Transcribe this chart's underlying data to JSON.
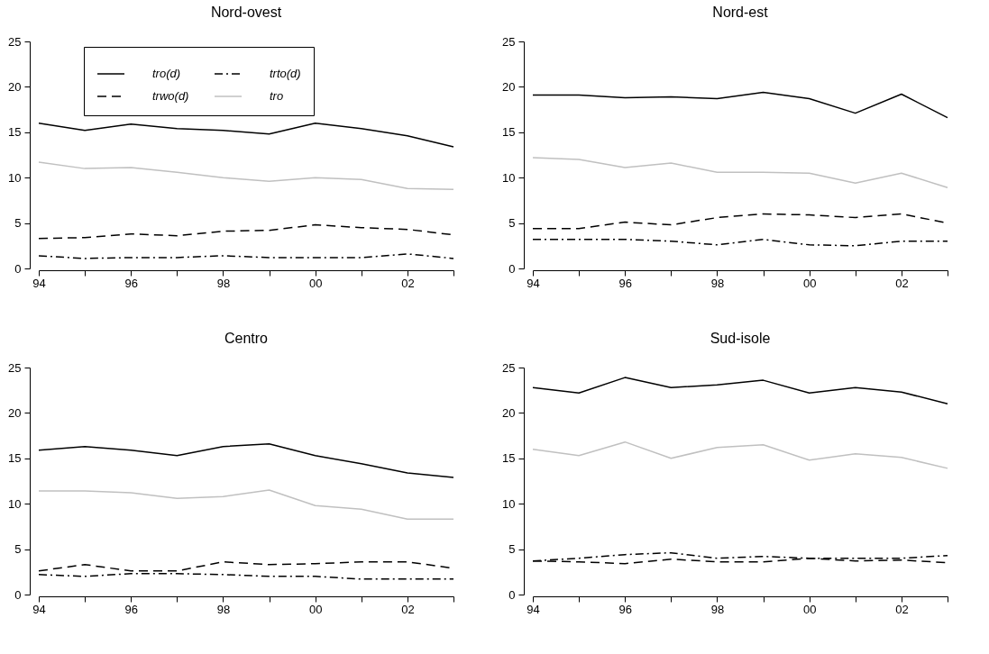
{
  "chart_data": [
    {
      "type": "line",
      "title": "Nord-ovest",
      "x": [
        1994,
        1995,
        1996,
        1997,
        1998,
        1999,
        2000,
        2001,
        2002,
        2003
      ],
      "xlim": [
        1994,
        2003
      ],
      "xticks": [
        {
          "value": 1994,
          "label": "94"
        },
        {
          "value": 1995,
          "label": null
        },
        {
          "value": 1996,
          "label": "96"
        },
        {
          "value": 1997,
          "label": null
        },
        {
          "value": 1998,
          "label": "98"
        },
        {
          "value": 1999,
          "label": null
        },
        {
          "value": 2000,
          "label": "00"
        },
        {
          "value": 2001,
          "label": null
        },
        {
          "value": 2002,
          "label": "02"
        },
        {
          "value": 2003,
          "label": null
        }
      ],
      "ylim": [
        0,
        25
      ],
      "yticks": [
        0,
        5,
        10,
        15,
        20,
        25
      ],
      "grid": false,
      "legend": "top",
      "series": [
        {
          "name": "tro(d)",
          "color": "#000000",
          "line_style": "solid",
          "values": [
            16.0,
            15.2,
            15.9,
            15.4,
            15.2,
            14.8,
            16.0,
            15.4,
            14.6,
            13.4
          ]
        },
        {
          "name": "trwo(d)",
          "color": "#000000",
          "line_style": "dashed",
          "values": [
            3.3,
            3.4,
            3.8,
            3.6,
            4.1,
            4.2,
            4.8,
            4.5,
            4.3,
            3.7
          ]
        },
        {
          "name": "trto(d)",
          "color": "#000000",
          "line_style": "dashdot",
          "values": [
            1.4,
            1.1,
            1.2,
            1.2,
            1.4,
            1.2,
            1.2,
            1.2,
            1.6,
            1.1
          ]
        },
        {
          "name": "tro",
          "color": "#c0c0c0",
          "line_style": "solid",
          "values": [
            11.7,
            11.0,
            11.1,
            10.6,
            10.0,
            9.6,
            10.0,
            9.8,
            8.8,
            8.7
          ]
        }
      ]
    },
    {
      "type": "line",
      "title": "Nord-est",
      "x": [
        1994,
        1995,
        1996,
        1997,
        1998,
        1999,
        2000,
        2001,
        2002,
        2003
      ],
      "xlim": [
        1994,
        2003
      ],
      "xticks": [
        {
          "value": 1994,
          "label": "94"
        },
        {
          "value": 1995,
          "label": null
        },
        {
          "value": 1996,
          "label": "96"
        },
        {
          "value": 1997,
          "label": null
        },
        {
          "value": 1998,
          "label": "98"
        },
        {
          "value": 1999,
          "label": null
        },
        {
          "value": 2000,
          "label": "00"
        },
        {
          "value": 2001,
          "label": null
        },
        {
          "value": 2002,
          "label": "02"
        },
        {
          "value": 2003,
          "label": null
        }
      ],
      "ylim": [
        0,
        25
      ],
      "yticks": [
        0,
        5,
        10,
        15,
        20,
        25
      ],
      "grid": false,
      "series": [
        {
          "color": "#000000",
          "line_style": "solid",
          "values": [
            19.1,
            19.1,
            18.8,
            18.9,
            18.7,
            19.4,
            18.7,
            17.1,
            19.2,
            16.6
          ]
        },
        {
          "color": "#000000",
          "line_style": "dashed",
          "values": [
            4.4,
            4.4,
            5.1,
            4.8,
            5.6,
            6.0,
            5.9,
            5.6,
            6.0,
            5.0
          ]
        },
        {
          "color": "#000000",
          "line_style": "dashdot",
          "values": [
            3.2,
            3.2,
            3.2,
            3.0,
            2.6,
            3.2,
            2.6,
            2.5,
            3.0,
            3.0
          ]
        },
        {
          "color": "#c0c0c0",
          "line_style": "solid",
          "values": [
            12.2,
            12.0,
            11.1,
            11.6,
            10.6,
            10.6,
            10.5,
            9.4,
            10.5,
            8.9
          ]
        }
      ]
    },
    {
      "type": "line",
      "title": "Centro",
      "x": [
        1994,
        1995,
        1996,
        1997,
        1998,
        1999,
        2000,
        2001,
        2002,
        2003
      ],
      "xlim": [
        1994,
        2003
      ],
      "xticks": [
        {
          "value": 1994,
          "label": "94"
        },
        {
          "value": 1995,
          "label": null
        },
        {
          "value": 1996,
          "label": "96"
        },
        {
          "value": 1997,
          "label": null
        },
        {
          "value": 1998,
          "label": "98"
        },
        {
          "value": 1999,
          "label": null
        },
        {
          "value": 2000,
          "label": "00"
        },
        {
          "value": 2001,
          "label": null
        },
        {
          "value": 2002,
          "label": "02"
        },
        {
          "value": 2003,
          "label": null
        }
      ],
      "ylim": [
        0,
        25
      ],
      "yticks": [
        0,
        5,
        10,
        15,
        20,
        25
      ],
      "grid": false,
      "series": [
        {
          "color": "#000000",
          "line_style": "solid",
          "values": [
            15.9,
            16.3,
            15.9,
            15.3,
            16.3,
            16.6,
            15.3,
            14.4,
            13.4,
            12.9
          ]
        },
        {
          "color": "#000000",
          "line_style": "dashed",
          "values": [
            2.6,
            3.3,
            2.6,
            2.6,
            3.6,
            3.3,
            3.4,
            3.6,
            3.6,
            2.9
          ]
        },
        {
          "color": "#000000",
          "line_style": "dashdot",
          "values": [
            2.2,
            2.0,
            2.3,
            2.3,
            2.2,
            2.0,
            2.0,
            1.7,
            1.7,
            1.7
          ]
        },
        {
          "color": "#c0c0c0",
          "line_style": "solid",
          "values": [
            11.4,
            11.4,
            11.2,
            10.6,
            10.8,
            11.5,
            9.8,
            9.4,
            8.3,
            8.3
          ]
        }
      ]
    },
    {
      "type": "line",
      "title": "Sud-isole",
      "x": [
        1994,
        1995,
        1996,
        1997,
        1998,
        1999,
        2000,
        2001,
        2002,
        2003
      ],
      "xlim": [
        1994,
        2003
      ],
      "xticks": [
        {
          "value": 1994,
          "label": "94"
        },
        {
          "value": 1995,
          "label": null
        },
        {
          "value": 1996,
          "label": "96"
        },
        {
          "value": 1997,
          "label": null
        },
        {
          "value": 1998,
          "label": "98"
        },
        {
          "value": 1999,
          "label": null
        },
        {
          "value": 2000,
          "label": "00"
        },
        {
          "value": 2001,
          "label": null
        },
        {
          "value": 2002,
          "label": "02"
        },
        {
          "value": 2003,
          "label": null
        }
      ],
      "ylim": [
        0,
        25
      ],
      "yticks": [
        0,
        5,
        10,
        15,
        20,
        25
      ],
      "grid": false,
      "series": [
        {
          "color": "#000000",
          "line_style": "solid",
          "values": [
            22.8,
            22.2,
            23.9,
            22.8,
            23.1,
            23.6,
            22.2,
            22.8,
            22.3,
            21.0
          ]
        },
        {
          "color": "#000000",
          "line_style": "dashed",
          "values": [
            3.7,
            3.6,
            3.4,
            3.9,
            3.6,
            3.6,
            4.0,
            3.7,
            3.8,
            3.5
          ]
        },
        {
          "color": "#000000",
          "line_style": "dashdot",
          "values": [
            3.7,
            4.0,
            4.4,
            4.6,
            4.0,
            4.2,
            4.0,
            4.0,
            4.0,
            4.3
          ]
        },
        {
          "color": "#c0c0c0",
          "line_style": "solid",
          "values": [
            16.0,
            15.3,
            16.8,
            15.0,
            16.2,
            16.5,
            14.8,
            15.5,
            15.1,
            13.9
          ]
        }
      ]
    }
  ]
}
